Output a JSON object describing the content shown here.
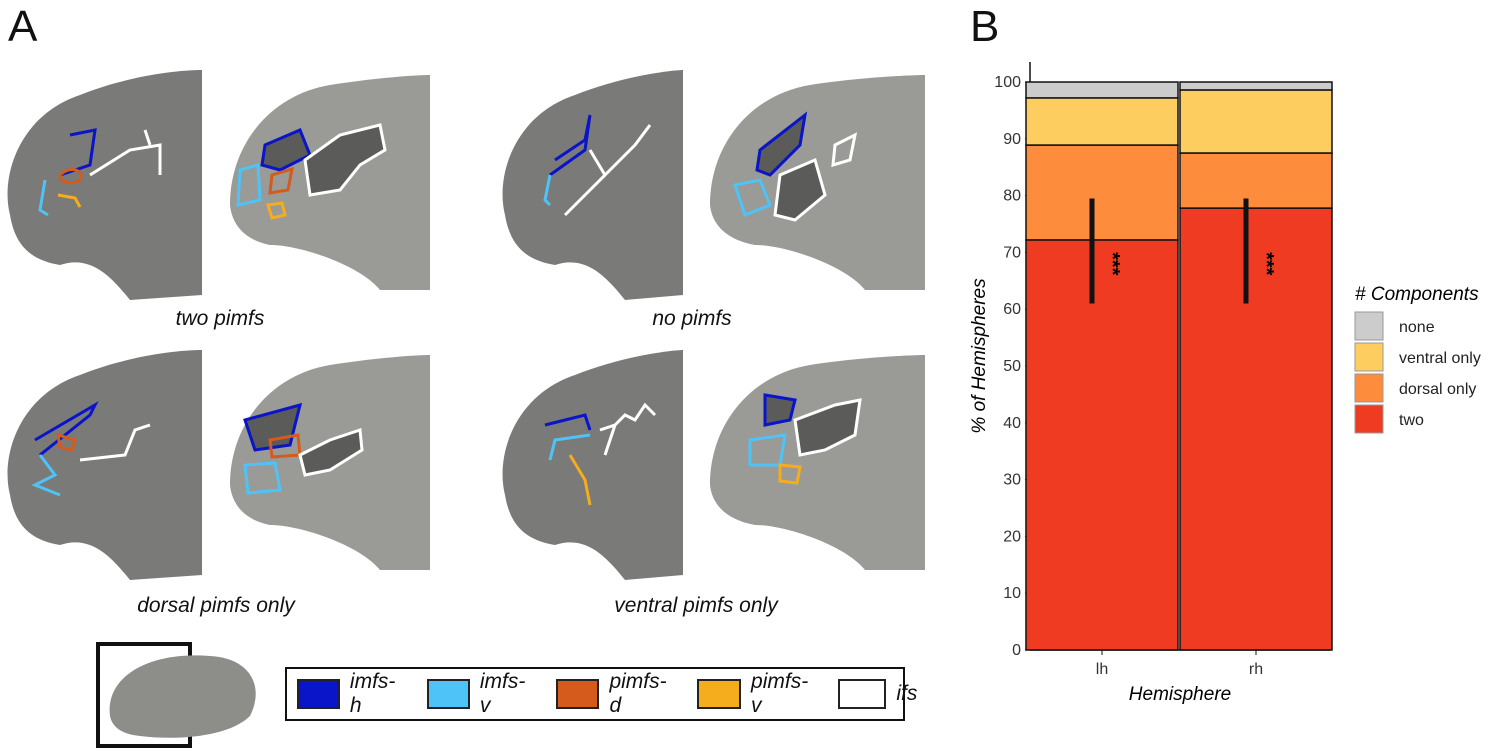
{
  "panels": {
    "a": "A",
    "b": "B"
  },
  "captions": [
    "two pimfs",
    "no pimfs",
    "dorsal pimfs only",
    "ventral pimfs only"
  ],
  "legend_a": [
    {
      "label": "imfs-h",
      "color": "#0a14c8"
    },
    {
      "label": "imfs-v",
      "color": "#4ec3f7"
    },
    {
      "label": "pimfs-d",
      "color": "#d55b1c"
    },
    {
      "label": "pimfs-v",
      "color": "#f5ad1e"
    },
    {
      "label": "ifs",
      "color": "#ffffff"
    }
  ],
  "chart_data": {
    "type": "bar",
    "stacked": true,
    "categories": [
      "lh",
      "rh"
    ],
    "xlabel": "Hemisphere",
    "ylabel": "% of Hemispheres",
    "ylim": [
      0,
      100
    ],
    "yticks": [
      0,
      10,
      20,
      30,
      40,
      50,
      60,
      70,
      80,
      90,
      100
    ],
    "legend_title": "# Components",
    "legend_position": "right",
    "series": [
      {
        "name": "two",
        "color": "#ee3b22",
        "values": [
          72.2,
          77.8
        ]
      },
      {
        "name": "dorsal only",
        "color": "#fd8c3c",
        "values": [
          16.7,
          9.7
        ]
      },
      {
        "name": "ventral only",
        "color": "#fdcd5f",
        "values": [
          8.3,
          11.1
        ]
      },
      {
        "name": "none",
        "color": "#cccccc",
        "values": [
          2.8,
          1.4
        ]
      }
    ],
    "error_bars": [
      {
        "category": "lh",
        "low": 61,
        "high": 79.5
      },
      {
        "category": "rh",
        "low": 61,
        "high": 79.5
      }
    ],
    "annotations": [
      {
        "category": "lh",
        "text": "***"
      },
      {
        "category": "rh",
        "text": "***"
      }
    ]
  }
}
